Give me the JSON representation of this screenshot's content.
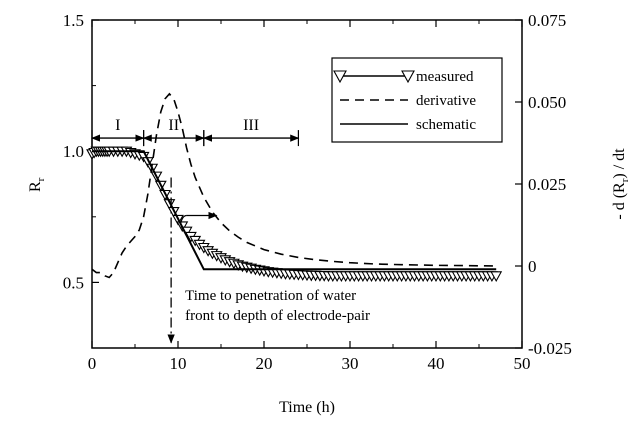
{
  "chart_data": {
    "type": "line",
    "title": "",
    "xlabel": "Time (h)",
    "ylabel_left_main": "R",
    "ylabel_left_sub": "r",
    "ylabel_right": "- d (R",
    "ylabel_right_sub": "r",
    "ylabel_right_tail": ") / dt",
    "xlim": [
      0,
      50
    ],
    "ylim_left": [
      0.25,
      1.5
    ],
    "ylim_right": [
      -0.025,
      0.075
    ],
    "x_ticks": [
      "0",
      "10",
      "20",
      "30",
      "40",
      "50"
    ],
    "x_tick_values": [
      0,
      10,
      20,
      30,
      40,
      50
    ],
    "y_left_ticks": [
      "0.5",
      "1.0",
      "1.5"
    ],
    "y_left_tick_values": [
      0.5,
      1.0,
      1.5
    ],
    "y_right_ticks": [
      "-0.025",
      "0",
      "0.025",
      "0.050",
      "0.075"
    ],
    "y_right_tick_values": [
      -0.025,
      0,
      0.025,
      0.05,
      0.075
    ],
    "grid": false,
    "legend_position": "top-right",
    "series": [
      {
        "name": "measured",
        "axis": "left",
        "style": "line-with-open-triangle-down-markers",
        "x": [
          0,
          0.25,
          0.5,
          0.75,
          1,
          1.25,
          1.5,
          1.75,
          2,
          2.5,
          3,
          3.5,
          4,
          4.5,
          5,
          5.5,
          6,
          6.5,
          7,
          7.5,
          8,
          8.5,
          9,
          9.5,
          10,
          10.5,
          11,
          11.5,
          12,
          12.5,
          13,
          13.5,
          14,
          14.5,
          15,
          15.5,
          16,
          16.5,
          17,
          17.5,
          18,
          18.5,
          19,
          19.5,
          20,
          20.5,
          21,
          21.5,
          22,
          22.5,
          23,
          23.5,
          24,
          24.5,
          25,
          25.5,
          26,
          26.5,
          27,
          27.5,
          28,
          28.5,
          29,
          29.5,
          30,
          30.5,
          31,
          31.5,
          32,
          32.5,
          33,
          33.5,
          34,
          34.5,
          35,
          35.5,
          36,
          36.5,
          37,
          37.5,
          38,
          38.5,
          39,
          39.5,
          40,
          40.5,
          41,
          41.5,
          42,
          42.5,
          43,
          43.5,
          44,
          44.5,
          45,
          45.5,
          46,
          46.5,
          47
        ],
        "values": [
          0.99,
          0.995,
          1.0,
          1.0,
          1.0,
          1.0,
          1.0,
          1.0,
          1.0,
          1.0,
          1.0,
          1.0,
          1.0,
          0.995,
          0.99,
          0.985,
          0.98,
          0.96,
          0.935,
          0.905,
          0.87,
          0.835,
          0.8,
          0.77,
          0.74,
          0.715,
          0.695,
          0.675,
          0.66,
          0.645,
          0.633,
          0.621,
          0.611,
          0.602,
          0.594,
          0.586,
          0.579,
          0.573,
          0.567,
          0.562,
          0.558,
          0.554,
          0.55,
          0.547,
          0.544,
          0.541,
          0.539,
          0.537,
          0.535,
          0.533,
          0.532,
          0.531,
          0.53,
          0.529,
          0.528,
          0.527,
          0.527,
          0.526,
          0.526,
          0.525,
          0.525,
          0.525,
          0.525,
          0.525,
          0.525,
          0.525,
          0.525,
          0.525,
          0.525,
          0.525,
          0.525,
          0.525,
          0.525,
          0.525,
          0.525,
          0.525,
          0.525,
          0.525,
          0.525,
          0.525,
          0.525,
          0.525,
          0.525,
          0.525,
          0.525,
          0.525,
          0.525,
          0.525,
          0.525,
          0.525,
          0.525,
          0.525,
          0.525,
          0.525,
          0.525,
          0.525,
          0.525,
          0.525,
          0.525
        ]
      },
      {
        "name": "derivative",
        "axis": "right",
        "style": "dashed",
        "x": [
          0,
          0.5,
          1,
          1.5,
          2,
          2.5,
          3,
          3.5,
          4,
          4.5,
          5,
          5.5,
          6,
          6.5,
          7,
          7.5,
          8,
          8.5,
          9,
          9.5,
          10,
          10.5,
          11,
          11.5,
          12,
          13,
          14,
          15,
          16,
          17,
          18,
          20,
          22,
          24,
          26,
          28,
          30,
          33,
          36,
          40,
          44,
          47
        ],
        "values": [
          -0.001,
          -0.002,
          -0.002,
          -0.003,
          -0.0035,
          -0.002,
          0.001,
          0.004,
          0.006,
          0.0075,
          0.009,
          0.011,
          0.015,
          0.022,
          0.031,
          0.04,
          0.047,
          0.051,
          0.0525,
          0.051,
          0.047,
          0.042,
          0.036,
          0.031,
          0.027,
          0.021,
          0.0165,
          0.0132,
          0.0107,
          0.0088,
          0.0072,
          0.005,
          0.0036,
          0.0026,
          0.0019,
          0.0014,
          0.001,
          0.0006,
          0.0004,
          0.0002,
          0.0001,
          0.0
        ]
      },
      {
        "name": "schematic",
        "axis": "left",
        "style": "solid",
        "x": [
          0,
          6,
          13,
          47
        ],
        "values": [
          1.0,
          1.0,
          0.55,
          0.55
        ]
      }
    ],
    "annotations": {
      "regions": [
        {
          "label": "I",
          "x_start": 0,
          "x_end": 6
        },
        {
          "label": "II",
          "x_start": 6,
          "x_end": 13
        },
        {
          "label": "III",
          "x_start": 13,
          "x_end": 24
        }
      ],
      "region_arrow_y": 1.05,
      "penetration_x": 9.2,
      "penetration_line": [
        0.27,
        0.9
      ],
      "penetration_text_1": "Time to penetration of water",
      "penetration_text_2": "front to depth of electrode-pair",
      "right_axis_arrow": {
        "x_from": 11,
        "x_to": 14.5,
        "y": 0.755
      }
    }
  }
}
